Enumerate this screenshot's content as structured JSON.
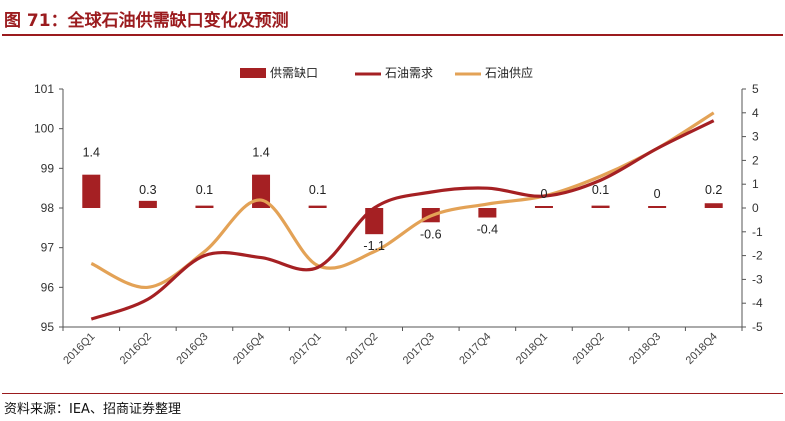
{
  "header": {
    "title": "图 71：全球石油供需缺口变化及预测"
  },
  "footer": {
    "source": "资料来源：IEA、招商证券整理"
  },
  "colors": {
    "accent": "#9b1b1e",
    "gap": "#a52023",
    "demand": "#a52023",
    "supply": "#e3a256"
  },
  "chart_data": {
    "type": "bar+line",
    "categories": [
      "2016Q1",
      "2016Q2",
      "2016Q3",
      "2016Q4",
      "2017Q1",
      "2017Q2",
      "2017Q3",
      "2017Q4",
      "2018Q1",
      "2018Q2",
      "2018Q3",
      "2018Q4"
    ],
    "series": [
      {
        "name": "供需缺口",
        "type": "bar",
        "axis": "right",
        "values": [
          1.4,
          0.3,
          0.1,
          1.4,
          0.1,
          -1.1,
          -0.6,
          -0.4,
          0,
          0.1,
          0,
          0.2
        ]
      },
      {
        "name": "石油需求",
        "type": "line",
        "axis": "left",
        "values": [
          95.2,
          95.7,
          96.8,
          96.75,
          96.5,
          98.0,
          98.4,
          98.5,
          98.3,
          98.7,
          99.5,
          100.2
        ]
      },
      {
        "name": "石油供应",
        "type": "line",
        "axis": "left",
        "values": [
          96.6,
          96.0,
          96.9,
          98.2,
          96.55,
          96.9,
          97.8,
          98.1,
          98.3,
          98.8,
          99.5,
          100.4
        ]
      }
    ],
    "left_axis": {
      "ylim": [
        95,
        101
      ],
      "ticks": [
        "95",
        "96",
        "97",
        "98",
        "99",
        "100",
        "101"
      ]
    },
    "right_axis": {
      "ylim": [
        -5,
        5
      ],
      "ticks": [
        "-5",
        "-4",
        "-3",
        "-2",
        "-1",
        "0",
        "1",
        "2",
        "3",
        "4",
        "5"
      ]
    },
    "data_labels": [
      "1.4",
      "0.3",
      "0.1",
      "1.4",
      "0.1",
      "-1.1",
      "-0.6",
      "-0.4",
      "0",
      "0.1",
      "0",
      "0.2"
    ],
    "legend": {
      "position": "top",
      "items": [
        "供需缺口",
        "石油需求",
        "石油供应"
      ]
    },
    "grid": false
  }
}
